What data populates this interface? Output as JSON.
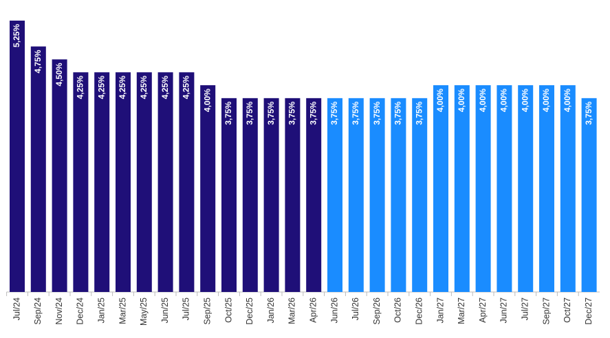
{
  "chart_data": {
    "type": "bar",
    "categories": [
      "Jul/24",
      "Sep/24",
      "Nov/24",
      "Dec/24",
      "Jan/25",
      "Mar/25",
      "May/25",
      "Jun/25",
      "Jul/25",
      "Sep/25",
      "Oct/25",
      "Dec/25",
      "Jan/26",
      "Mar/26",
      "Apr/26",
      "Jun/26",
      "Jul/26",
      "Sep/26",
      "Oct/26",
      "Dec/26",
      "Jan/27",
      "Mar/27",
      "Apr/27",
      "Jun/27",
      "Jul/27",
      "Sep/27",
      "Oct/27",
      "Dec/27"
    ],
    "values": [
      5.25,
      4.75,
      4.5,
      4.25,
      4.25,
      4.25,
      4.25,
      4.25,
      4.25,
      4.0,
      3.75,
      3.75,
      3.75,
      3.75,
      3.75,
      3.75,
      3.75,
      3.75,
      3.75,
      3.75,
      4.0,
      4.0,
      4.0,
      4.0,
      4.0,
      4.0,
      4.0,
      3.75
    ],
    "value_labels": [
      "5,25%",
      "4,75%",
      "4,50%",
      "4,25%",
      "4,25%",
      "4,25%",
      "4,25%",
      "4,25%",
      "4,25%",
      "4,00%",
      "3,75%",
      "3,75%",
      "3,75%",
      "3,75%",
      "3,75%",
      "3,75%",
      "3,75%",
      "3,75%",
      "3,75%",
      "3,75%",
      "4,00%",
      "4,00%",
      "4,00%",
      "4,00%",
      "4,00%",
      "4,00%",
      "4,00%",
      "3,75%"
    ],
    "colors": [
      "#1f0f78",
      "#1f0f78",
      "#1f0f78",
      "#1f0f78",
      "#1f0f78",
      "#1f0f78",
      "#1f0f78",
      "#1f0f78",
      "#1f0f78",
      "#1f0f78",
      "#1f0f78",
      "#1f0f78",
      "#1f0f78",
      "#1f0f78",
      "#1f0f78",
      "#1a8cff",
      "#1a8cff",
      "#1a8cff",
      "#1a8cff",
      "#1a8cff",
      "#1a8cff",
      "#1a8cff",
      "#1a8cff",
      "#1a8cff",
      "#1a8cff",
      "#1a8cff",
      "#1a8cff",
      "#1a8cff"
    ],
    "ylim": [
      0,
      5.25
    ]
  }
}
